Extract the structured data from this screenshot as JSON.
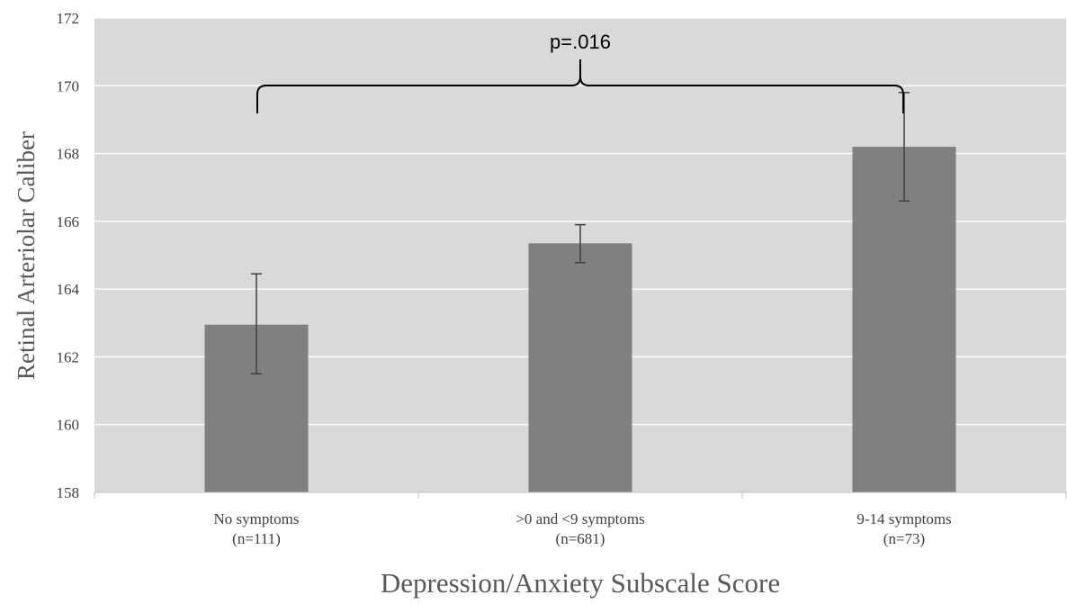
{
  "chart_data": {
    "type": "bar",
    "title": "",
    "xlabel": "Depression/Anxiety  Subscale Score",
    "ylabel": "Retinal  Arteriolar  Caliber",
    "ylim": [
      158,
      172
    ],
    "yticks": [
      158,
      160,
      162,
      164,
      166,
      168,
      170,
      172
    ],
    "grid": true,
    "categories": [
      {
        "line1": "No symptoms",
        "line2": "(n=111)"
      },
      {
        "line1": ">0 and <9 symptoms",
        "line2": "(n=681)"
      },
      {
        "line1": "9-14 symptoms",
        "line2": "(n=73)"
      }
    ],
    "values": [
      162.95,
      165.35,
      168.2
    ],
    "error_low": [
      161.5,
      164.78,
      166.6
    ],
    "error_high": [
      164.45,
      165.9,
      169.8
    ],
    "annotation": {
      "text": "p=.016",
      "spans": [
        "No symptoms",
        "9-14 symptoms"
      ]
    },
    "colors": {
      "bar": "#808080",
      "plot_bg": "#d9d9d9",
      "grid": "#ffffff",
      "error": "#404040"
    }
  }
}
